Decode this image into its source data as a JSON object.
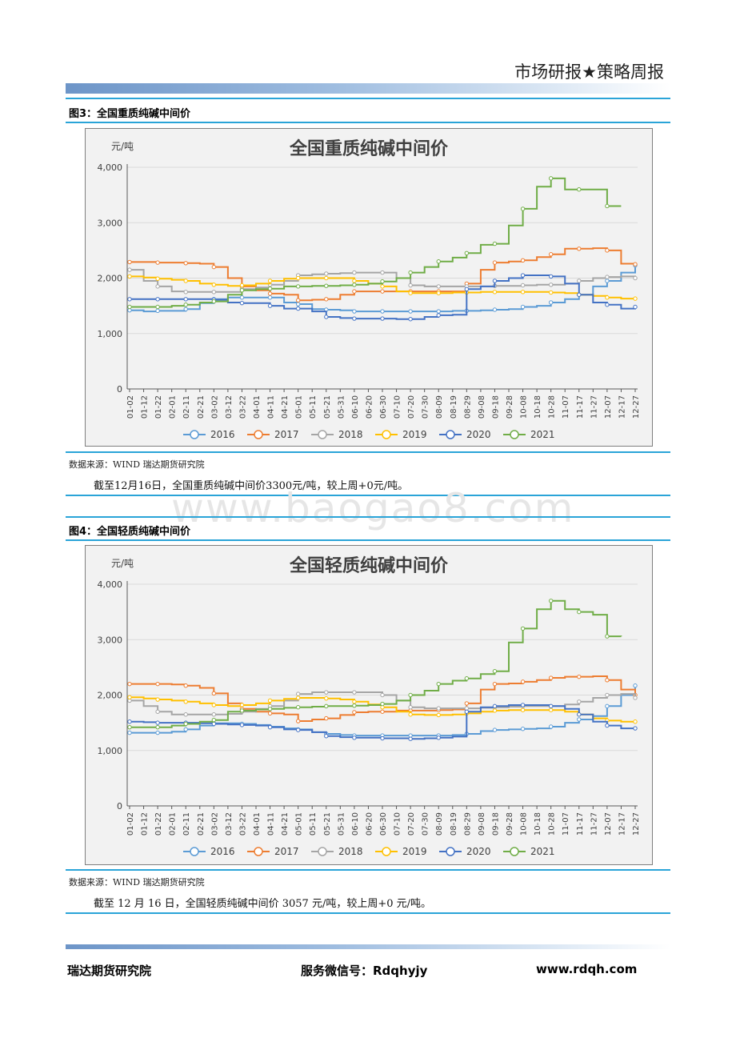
{
  "header": {
    "title": "市场研报★策略周报"
  },
  "watermark": "www.baogao8.com",
  "sections": [
    {
      "fig_label": "图3：全国重质纯碱中间价",
      "source": "数据来源：WIND 瑞达期货研究院",
      "paragraph": "截至12月16日，全国重质纯碱中间价3300元/吨，较上周+0元/吨。"
    },
    {
      "fig_label": "图4：全国轻质纯碱中间价",
      "source": "数据来源：WIND 瑞达期货研究院",
      "paragraph": "截至 12 月 16 日，全国轻质纯碱中间价 3057 元/吨，较上周+0 元/吨。"
    }
  ],
  "footer": {
    "left": "瑞达期货研究院",
    "center": "服务微信号：Rdqhyjy",
    "right": "www.rdqh.com"
  },
  "chart_data": [
    {
      "type": "line",
      "title": "全国重质纯碱中间价",
      "ylabel": "元/吨",
      "ylim": [
        0,
        4000
      ],
      "yticks": [
        "0",
        "1,000",
        "2,000",
        "3,000",
        "4,000"
      ],
      "x": [
        "01-02",
        "01-12",
        "01-22",
        "02-01",
        "02-11",
        "02-21",
        "03-02",
        "03-12",
        "03-22",
        "04-01",
        "04-11",
        "04-21",
        "05-01",
        "05-11",
        "05-21",
        "05-31",
        "06-10",
        "06-20",
        "06-30",
        "07-10",
        "07-20",
        "07-30",
        "08-09",
        "08-19",
        "08-29",
        "09-08",
        "09-18",
        "09-28",
        "10-08",
        "10-18",
        "10-28",
        "11-07",
        "11-17",
        "11-27",
        "12-07",
        "12-17",
        "12-27"
      ],
      "grid": true,
      "legend_position": "bottom",
      "series": [
        {
          "name": "2016",
          "color": "#5b9bd5",
          "values": [
            1420,
            1400,
            1410,
            1410,
            1440,
            1550,
            1620,
            1650,
            1650,
            1650,
            1650,
            1560,
            1530,
            1440,
            1430,
            1420,
            1400,
            1400,
            1400,
            1400,
            1400,
            1400,
            1400,
            1410,
            1410,
            1420,
            1430,
            1440,
            1480,
            1500,
            1560,
            1620,
            1700,
            1850,
            1950,
            2100,
            2230
          ]
        },
        {
          "name": "2017",
          "color": "#ed7d31",
          "values": [
            2290,
            2290,
            2280,
            2280,
            2270,
            2260,
            2200,
            2000,
            1850,
            1780,
            1720,
            1700,
            1600,
            1610,
            1620,
            1700,
            1760,
            1760,
            1760,
            1760,
            1760,
            1760,
            1760,
            1760,
            1900,
            2150,
            2280,
            2300,
            2320,
            2380,
            2430,
            2530,
            2530,
            2540,
            2500,
            2260,
            2250
          ]
        },
        {
          "name": "2018",
          "color": "#a5a5a5",
          "values": [
            2150,
            1950,
            1850,
            1760,
            1750,
            1750,
            1750,
            1750,
            1800,
            1830,
            1880,
            1950,
            2050,
            2070,
            2080,
            2090,
            2100,
            2100,
            2100,
            2000,
            1870,
            1850,
            1850,
            1850,
            1850,
            1850,
            1860,
            1860,
            1870,
            1880,
            1880,
            1900,
            1950,
            2000,
            2020,
            2030,
            2000
          ]
        },
        {
          "name": "2019",
          "color": "#ffc000",
          "values": [
            2030,
            2010,
            1990,
            1970,
            1950,
            1900,
            1880,
            1860,
            1870,
            1900,
            1950,
            1990,
            2000,
            2000,
            2000,
            2000,
            1950,
            1900,
            1850,
            1760,
            1730,
            1730,
            1730,
            1740,
            1740,
            1750,
            1750,
            1750,
            1750,
            1750,
            1740,
            1730,
            1700,
            1680,
            1650,
            1630,
            1630
          ]
        },
        {
          "name": "2020",
          "color": "#4472c4",
          "values": [
            1620,
            1620,
            1620,
            1620,
            1620,
            1620,
            1610,
            1560,
            1550,
            1550,
            1500,
            1450,
            1450,
            1400,
            1300,
            1280,
            1270,
            1270,
            1270,
            1260,
            1260,
            1300,
            1330,
            1340,
            1800,
            1850,
            1950,
            2000,
            2050,
            2050,
            2030,
            1900,
            1700,
            1560,
            1520,
            1450,
            1480
          ]
        },
        {
          "name": "2021",
          "color": "#70ad47",
          "values": [
            1480,
            1480,
            1480,
            1500,
            1520,
            1560,
            1580,
            1700,
            1780,
            1800,
            1810,
            1850,
            1850,
            1860,
            1860,
            1870,
            1880,
            1900,
            1940,
            2000,
            2100,
            2200,
            2300,
            2370,
            2450,
            2600,
            2620,
            2950,
            3250,
            3650,
            3800,
            3600,
            3600,
            3600,
            3300,
            3300,
            null
          ]
        }
      ]
    },
    {
      "type": "line",
      "title": "全国轻质纯碱中间价",
      "ylabel": "元/吨",
      "ylim": [
        0,
        4000
      ],
      "yticks": [
        "0",
        "1,000",
        "2,000",
        "3,000",
        "4,000"
      ],
      "x": [
        "01-02",
        "01-12",
        "01-22",
        "02-01",
        "02-11",
        "02-21",
        "03-02",
        "03-12",
        "03-22",
        "04-01",
        "04-11",
        "04-21",
        "05-01",
        "05-11",
        "05-21",
        "05-31",
        "06-10",
        "06-20",
        "06-30",
        "07-10",
        "07-20",
        "07-30",
        "08-09",
        "08-19",
        "08-29",
        "09-08",
        "09-18",
        "09-28",
        "10-08",
        "10-18",
        "10-28",
        "11-07",
        "11-17",
        "11-27",
        "12-07",
        "12-17",
        "12-27"
      ],
      "grid": true,
      "legend_position": "bottom",
      "series": [
        {
          "name": "2016",
          "color": "#5b9bd5",
          "values": [
            1320,
            1320,
            1320,
            1340,
            1380,
            1450,
            1490,
            1490,
            1480,
            1460,
            1430,
            1400,
            1380,
            1330,
            1300,
            1280,
            1270,
            1270,
            1270,
            1270,
            1270,
            1270,
            1270,
            1280,
            1300,
            1350,
            1370,
            1380,
            1390,
            1400,
            1430,
            1500,
            1560,
            1620,
            1800,
            2000,
            2170
          ]
        },
        {
          "name": "2017",
          "color": "#ed7d31",
          "values": [
            2200,
            2200,
            2200,
            2190,
            2170,
            2130,
            2030,
            1850,
            1750,
            1700,
            1670,
            1650,
            1530,
            1560,
            1580,
            1640,
            1690,
            1700,
            1700,
            1720,
            1720,
            1720,
            1730,
            1740,
            1850,
            2100,
            2200,
            2210,
            2240,
            2270,
            2310,
            2330,
            2330,
            2340,
            2270,
            2100,
            2000
          ]
        },
        {
          "name": "2018",
          "color": "#a5a5a5",
          "values": [
            1900,
            1800,
            1700,
            1650,
            1650,
            1650,
            1650,
            1660,
            1700,
            1750,
            1800,
            1900,
            2020,
            2050,
            2050,
            2050,
            2050,
            2050,
            2000,
            1900,
            1780,
            1760,
            1760,
            1760,
            1760,
            1770,
            1780,
            1790,
            1800,
            1800,
            1800,
            1830,
            1880,
            1950,
            2000,
            2020,
            1950
          ]
        },
        {
          "name": "2019",
          "color": "#ffc000",
          "values": [
            1960,
            1940,
            1920,
            1900,
            1880,
            1850,
            1820,
            1800,
            1820,
            1850,
            1900,
            1930,
            1950,
            1950,
            1940,
            1920,
            1880,
            1830,
            1780,
            1700,
            1650,
            1640,
            1640,
            1650,
            1670,
            1700,
            1720,
            1730,
            1730,
            1730,
            1730,
            1700,
            1650,
            1580,
            1540,
            1520,
            1520
          ]
        },
        {
          "name": "2020",
          "color": "#4472c4",
          "values": [
            1520,
            1510,
            1500,
            1500,
            1500,
            1490,
            1480,
            1470,
            1460,
            1450,
            1420,
            1380,
            1370,
            1330,
            1260,
            1240,
            1230,
            1230,
            1220,
            1220,
            1210,
            1220,
            1230,
            1250,
            1700,
            1780,
            1800,
            1820,
            1820,
            1820,
            1800,
            1750,
            1650,
            1520,
            1450,
            1400,
            1400
          ]
        },
        {
          "name": "2021",
          "color": "#70ad47",
          "values": [
            1420,
            1420,
            1420,
            1450,
            1480,
            1520,
            1550,
            1700,
            1720,
            1740,
            1750,
            1770,
            1780,
            1790,
            1800,
            1800,
            1810,
            1820,
            1840,
            1900,
            2000,
            2080,
            2200,
            2260,
            2300,
            2380,
            2430,
            2950,
            3200,
            3550,
            3700,
            3550,
            3500,
            3450,
            3060,
            3057,
            null
          ]
        }
      ]
    }
  ]
}
